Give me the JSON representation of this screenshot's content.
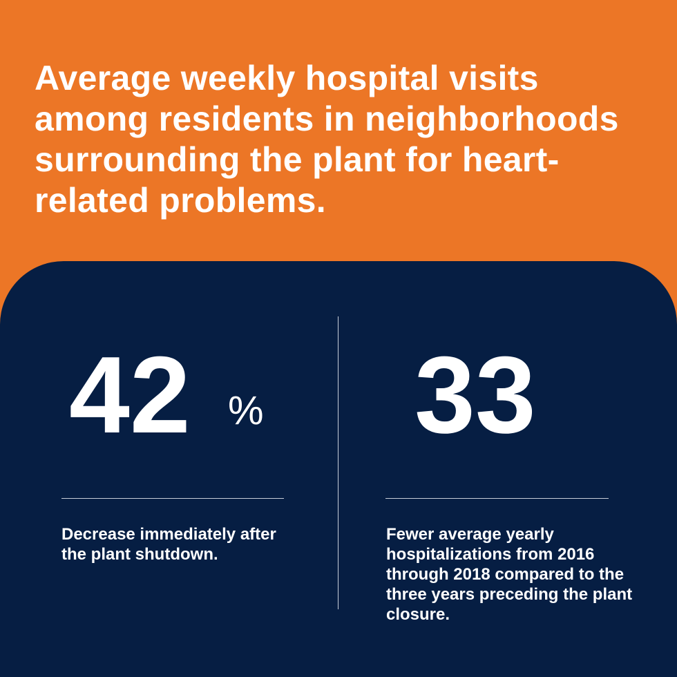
{
  "title": "Average weekly hospital visits among residents in neighborhoods surrounding the plant for heart-related problems.",
  "stats": [
    {
      "value": "42",
      "unit": "%",
      "description": "Decrease immediately after the plant shutdown."
    },
    {
      "value": "33",
      "description": "Fewer average yearly hospitalizations from 2016 through 2018 compared to the three years preceding the plant closure."
    }
  ]
}
